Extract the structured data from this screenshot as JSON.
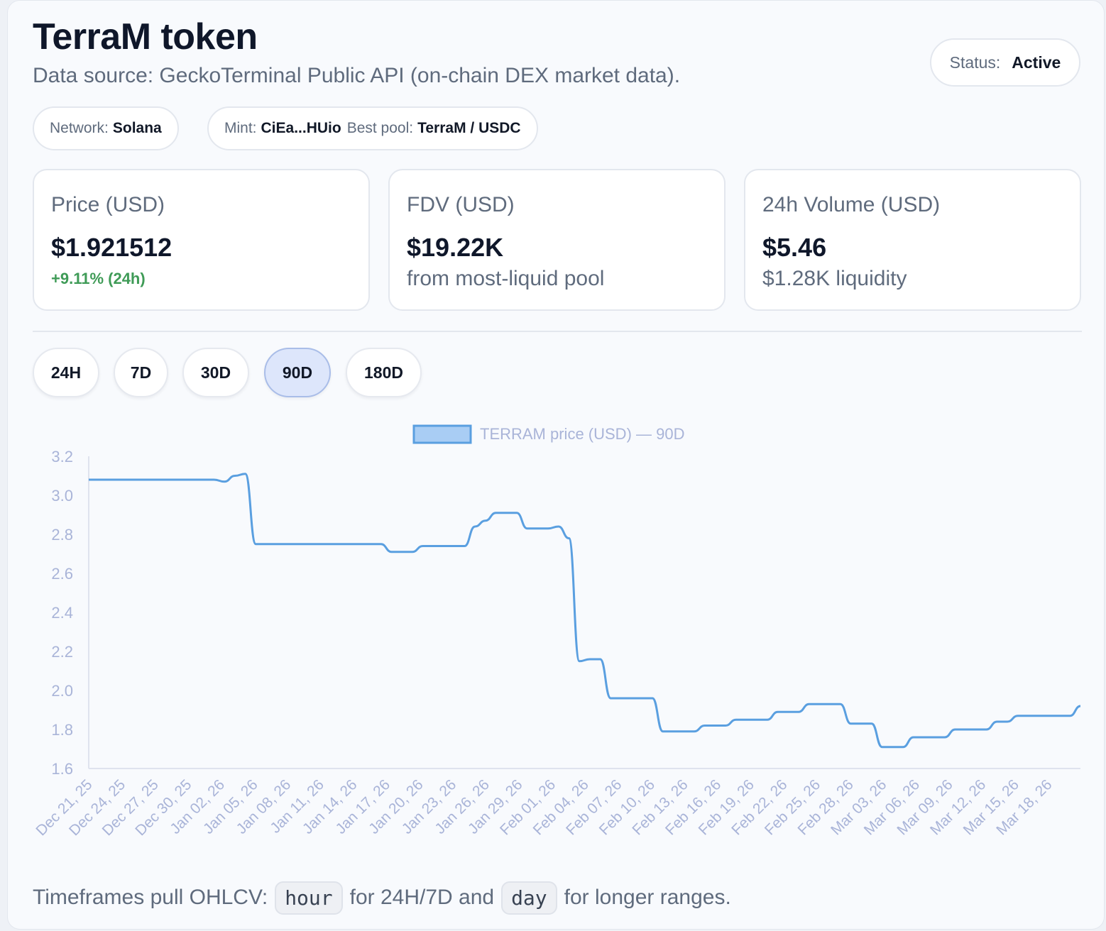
{
  "header": {
    "title": "TerraM token",
    "subtitle": "Data source: GeckoTerminal Public API (on-chain DEX market data).",
    "status_label": "Status:",
    "status_value": "Active"
  },
  "meta": {
    "network_label": "Network:",
    "network_value": "Solana",
    "mint_label": "Mint:",
    "mint_value": "CiEa...HUio",
    "pool_label": "Best pool:",
    "pool_value": "TerraM / USDC"
  },
  "stats": {
    "price": {
      "label": "Price (USD)",
      "value": "$1.921512",
      "change": "+9.11% (24h)"
    },
    "fdv": {
      "label": "FDV (USD)",
      "value": "$19.22K",
      "sub": "from most-liquid pool"
    },
    "volume": {
      "label": "24h Volume (USD)",
      "value": "$5.46",
      "sub": "$1.28K liquidity"
    }
  },
  "timeframes": [
    "24H",
    "7D",
    "30D",
    "90D",
    "180D"
  ],
  "active_timeframe": "90D",
  "colors": {
    "line": "#5a9fe0",
    "legend_fill": "#a9cdf4",
    "positive": "#3f9b57",
    "axis_text": "#a9b4d8"
  },
  "chart_data": {
    "type": "line",
    "legend": "TERRAM price (USD) — 90D",
    "ylim": [
      1.6,
      3.2
    ],
    "yticks": [
      1.6,
      1.8,
      2.0,
      2.2,
      2.4,
      2.6,
      2.8,
      3.0,
      3.2
    ],
    "xticks": [
      "Dec 21, 25",
      "Dec 24, 25",
      "Dec 27, 25",
      "Dec 30, 25",
      "Jan 02, 26",
      "Jan 05, 26",
      "Jan 08, 26",
      "Jan 11, 26",
      "Jan 14, 26",
      "Jan 17, 26",
      "Jan 20, 26",
      "Jan 23, 26",
      "Jan 26, 26",
      "Jan 29, 26",
      "Feb 01, 26",
      "Feb 04, 26",
      "Feb 07, 26",
      "Feb 10, 26",
      "Feb 13, 26",
      "Feb 16, 26",
      "Feb 19, 26",
      "Feb 22, 26",
      "Feb 25, 26",
      "Feb 28, 26",
      "Mar 03, 26",
      "Mar 06, 26",
      "Mar 09, 26",
      "Mar 12, 26",
      "Mar 15, 26",
      "Mar 18, 26"
    ],
    "series": [
      {
        "name": "TERRAM price (USD) — 90D",
        "values": [
          3.08,
          3.08,
          3.08,
          3.08,
          3.08,
          3.08,
          3.08,
          3.08,
          3.08,
          3.08,
          3.08,
          3.08,
          3.08,
          3.07,
          3.1,
          3.11,
          2.75,
          2.75,
          2.75,
          2.75,
          2.75,
          2.75,
          2.75,
          2.75,
          2.75,
          2.75,
          2.75,
          2.75,
          2.75,
          2.71,
          2.71,
          2.71,
          2.74,
          2.74,
          2.74,
          2.74,
          2.74,
          2.84,
          2.87,
          2.91,
          2.91,
          2.91,
          2.83,
          2.83,
          2.83,
          2.84,
          2.78,
          2.15,
          2.16,
          2.16,
          1.96,
          1.96,
          1.96,
          1.96,
          1.96,
          1.79,
          1.79,
          1.79,
          1.79,
          1.82,
          1.82,
          1.82,
          1.85,
          1.85,
          1.85,
          1.85,
          1.89,
          1.89,
          1.89,
          1.93,
          1.93,
          1.93,
          1.93,
          1.83,
          1.83,
          1.83,
          1.71,
          1.71,
          1.71,
          1.76,
          1.76,
          1.76,
          1.76,
          1.8,
          1.8,
          1.8,
          1.8,
          1.84,
          1.84,
          1.87,
          1.87,
          1.87,
          1.87,
          1.87,
          1.87,
          1.92
        ]
      }
    ]
  },
  "footer": {
    "prefix": "Timeframes pull OHLCV:",
    "code1": "hour",
    "middle": "for 24H/7D and",
    "code2": "day",
    "suffix": "for longer ranges."
  }
}
